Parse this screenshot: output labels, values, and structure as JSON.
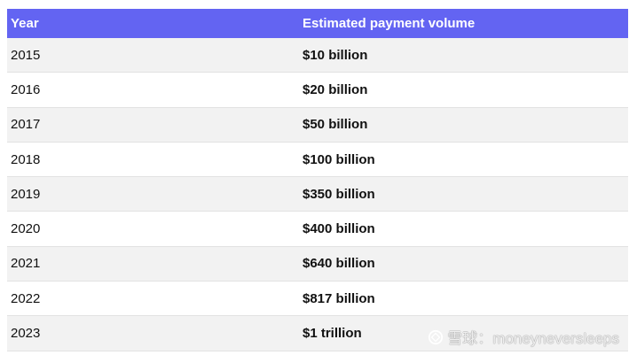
{
  "table": {
    "headers": [
      "Year",
      "Estimated payment volume"
    ],
    "rows": [
      {
        "year": "2015",
        "volume": "$10 billion"
      },
      {
        "year": "2016",
        "volume": "$20 billion"
      },
      {
        "year": "2017",
        "volume": "$50 billion"
      },
      {
        "year": "2018",
        "volume": "$100 billion"
      },
      {
        "year": "2019",
        "volume": "$350 billion"
      },
      {
        "year": "2020",
        "volume": "$400 billion"
      },
      {
        "year": "2021",
        "volume": "$640 billion"
      },
      {
        "year": "2022",
        "volume": "$817 billion"
      },
      {
        "year": "2023",
        "volume": "$1 trillion"
      }
    ]
  },
  "watermark": {
    "text": "雪球：moneyneversleeps"
  },
  "colors": {
    "header_bg": "#6364f2",
    "stripe": "#f2f2f2"
  }
}
